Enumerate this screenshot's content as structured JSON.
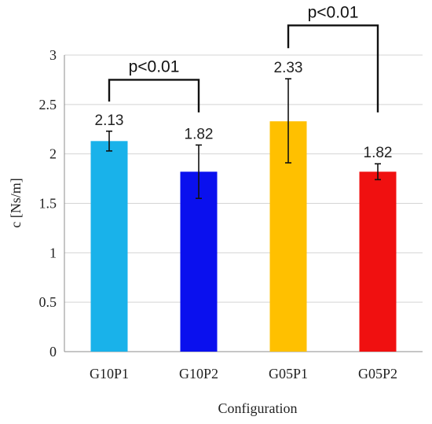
{
  "chart_data": {
    "type": "bar",
    "title": "",
    "xlabel": "Configuration",
    "ylabel": "c [Ns/m]",
    "ylim": [
      0,
      3
    ],
    "yticks": [
      0,
      0.5,
      1,
      1.5,
      2,
      2.5,
      3
    ],
    "ytick_labels": [
      "0",
      "0.5",
      "1",
      "1.5",
      "2",
      "2.5",
      "3"
    ],
    "grid": "horizontal",
    "legend": "none",
    "categories": [
      "G10P1",
      "G10P2",
      "G05P1",
      "G05P2"
    ],
    "values": [
      2.13,
      1.82,
      2.33,
      1.82
    ],
    "value_labels": [
      "2.13",
      "1.82",
      "2.33",
      "1.82"
    ],
    "error_low": [
      2.03,
      1.55,
      1.91,
      1.74
    ],
    "error_high": [
      2.23,
      2.09,
      2.76,
      1.9
    ],
    "colors": [
      "#19b2ea",
      "#0a10ee",
      "#ffc000",
      "#f01010"
    ],
    "annotations": [
      {
        "text": "p<0.01",
        "from": "G10P1",
        "to": "G10P2",
        "bracket_y": 2.75,
        "left_end": 2.53,
        "right_end": 2.42
      },
      {
        "text": "p<0.01",
        "from": "G05P1",
        "to": "G05P2",
        "bracket_y": 3.3,
        "left_end": 3.07,
        "right_end": 2.42
      }
    ]
  }
}
